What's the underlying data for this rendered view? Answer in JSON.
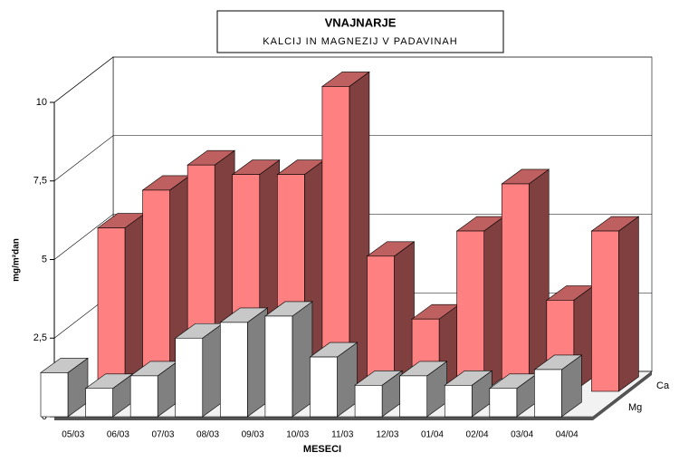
{
  "chart_data": {
    "type": "bar3d",
    "title": "VNAJNARJE",
    "subtitle": "KALCIJ IN MAGNEZIJ V PADAVINAH",
    "ylabel": "mg/m²dan",
    "xlabel": "MESECI",
    "categories": [
      "05/03",
      "06/03",
      "07/03",
      "08/03",
      "09/03",
      "10/03",
      "11/03",
      "12/03",
      "01/04",
      "02/04",
      "03/04",
      "04/04"
    ],
    "series": [
      {
        "name": "Ca",
        "color": "#ff8080",
        "values": [
          5.2,
          6.4,
          7.2,
          6.9,
          6.9,
          9.7,
          4.3,
          2.3,
          5.1,
          6.6,
          2.9,
          5.1
        ]
      },
      {
        "name": "Mg",
        "color": "#ffffff",
        "values": [
          1.4,
          0.9,
          1.3,
          2.5,
          3.0,
          3.2,
          1.9,
          1.0,
          1.3,
          1.0,
          0.9,
          1.5
        ]
      }
    ],
    "ylim": [
      0,
      10
    ],
    "yticks": [
      0,
      {
        "value": 2.5,
        "label": "2,5"
      },
      5,
      {
        "value": 7.5,
        "label": "7,5"
      },
      10
    ],
    "grid": true
  }
}
